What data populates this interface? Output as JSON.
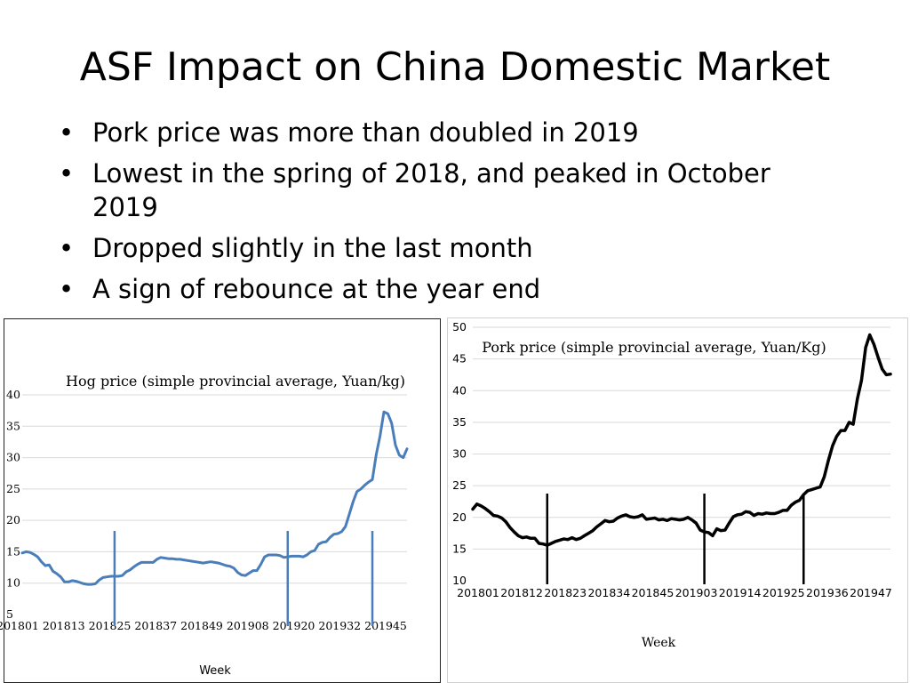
{
  "slide": {
    "title": "ASF Impact on China Domestic Market",
    "bullets": [
      "Pork price was more than doubled in 2019",
      "Lowest in the spring of 2018, and peaked in October 2019",
      "Dropped slightly in the last month",
      "A sign of rebounce at the year end"
    ],
    "bullet_glyph": "•"
  },
  "chart_data": [
    {
      "type": "line",
      "title": "Hog price (simple provincial average, Yuan/kg)",
      "xlabel": "Week",
      "ylabel": "",
      "ylim": [
        5,
        40
      ],
      "yticks": [
        5,
        10,
        15,
        20,
        25,
        30,
        35,
        40
      ],
      "xticks": [
        "201801",
        "201813",
        "201825",
        "201837",
        "201849",
        "201908",
        "201920",
        "201932",
        "201945"
      ],
      "grid": true,
      "line_color": "#4a7ebb",
      "marker_color": "#4a7ebb",
      "markers_x_index": [
        24,
        69,
        91
      ],
      "series": [
        {
          "values": [
            14.8,
            15.0,
            14.9,
            14.6,
            14.2,
            13.4,
            12.8,
            12.9,
            11.9,
            11.5,
            11.0,
            10.2,
            10.2,
            10.4,
            10.3,
            10.1,
            9.9,
            9.8,
            9.8,
            9.9,
            10.5,
            10.9,
            11.0,
            11.1,
            11.1,
            11.1,
            11.2,
            11.8,
            12.1,
            12.6,
            13.0,
            13.3,
            13.3,
            13.3,
            13.3,
            13.8,
            14.1,
            14.0,
            13.9,
            13.9,
            13.8,
            13.8,
            13.7,
            13.6,
            13.5,
            13.4,
            13.3,
            13.2,
            13.3,
            13.4,
            13.3,
            13.2,
            13.0,
            12.8,
            12.7,
            12.4,
            11.7,
            11.3,
            11.2,
            11.6,
            12.0,
            12.0,
            13.0,
            14.2,
            14.5,
            14.5,
            14.5,
            14.4,
            14.1,
            14.2,
            14.3,
            14.3,
            14.3,
            14.2,
            14.5,
            15.0,
            15.2,
            16.2,
            16.5,
            16.6,
            17.3,
            17.8,
            17.9,
            18.2,
            19.0,
            21.0,
            23.0,
            24.6,
            25.0,
            25.6,
            26.1,
            26.5,
            30.5,
            33.5,
            37.3,
            37.0,
            35.5,
            32.0,
            30.4,
            30.0,
            31.4
          ]
        }
      ]
    },
    {
      "type": "line",
      "title": "Pork price (simple provincial average, Yuan/Kg)",
      "xlabel": "Week",
      "ylabel": "",
      "ylim": [
        10,
        50
      ],
      "yticks": [
        10,
        15,
        20,
        25,
        30,
        35,
        40,
        45,
        50
      ],
      "xticks": [
        "201801",
        "201812",
        "201823",
        "201834",
        "201845",
        "201903",
        "201914",
        "201925",
        "201936",
        "201947"
      ],
      "grid": true,
      "line_color": "#000000",
      "marker_color": "#000000",
      "markers_x_index": [
        18,
        56,
        80
      ],
      "series": [
        {
          "values": [
            21.3,
            22.1,
            21.8,
            21.4,
            20.9,
            20.3,
            20.2,
            19.9,
            19.3,
            18.4,
            17.7,
            17.1,
            16.8,
            16.9,
            16.7,
            16.7,
            15.9,
            15.8,
            15.6,
            15.9,
            16.2,
            16.4,
            16.6,
            16.5,
            16.8,
            16.5,
            16.7,
            17.1,
            17.5,
            17.9,
            18.5,
            19.0,
            19.5,
            19.3,
            19.4,
            19.9,
            20.2,
            20.4,
            20.1,
            20.0,
            20.1,
            20.4,
            19.7,
            19.8,
            19.9,
            19.6,
            19.7,
            19.5,
            19.8,
            19.7,
            19.6,
            19.7,
            20.0,
            19.6,
            19.1,
            18.0,
            17.7,
            17.6,
            17.1,
            18.2,
            17.9,
            18.0,
            19.1,
            20.1,
            20.4,
            20.5,
            20.9,
            20.8,
            20.3,
            20.6,
            20.5,
            20.7,
            20.6,
            20.6,
            20.8,
            21.1,
            21.1,
            21.9,
            22.4,
            22.7,
            23.6,
            24.2,
            24.4,
            24.6,
            24.8,
            26.4,
            29.0,
            31.3,
            32.8,
            33.7,
            33.7,
            35.0,
            34.7,
            38.7,
            41.6,
            46.8,
            48.8,
            47.3,
            45.3,
            43.4,
            42.5,
            42.6
          ]
        }
      ]
    }
  ]
}
